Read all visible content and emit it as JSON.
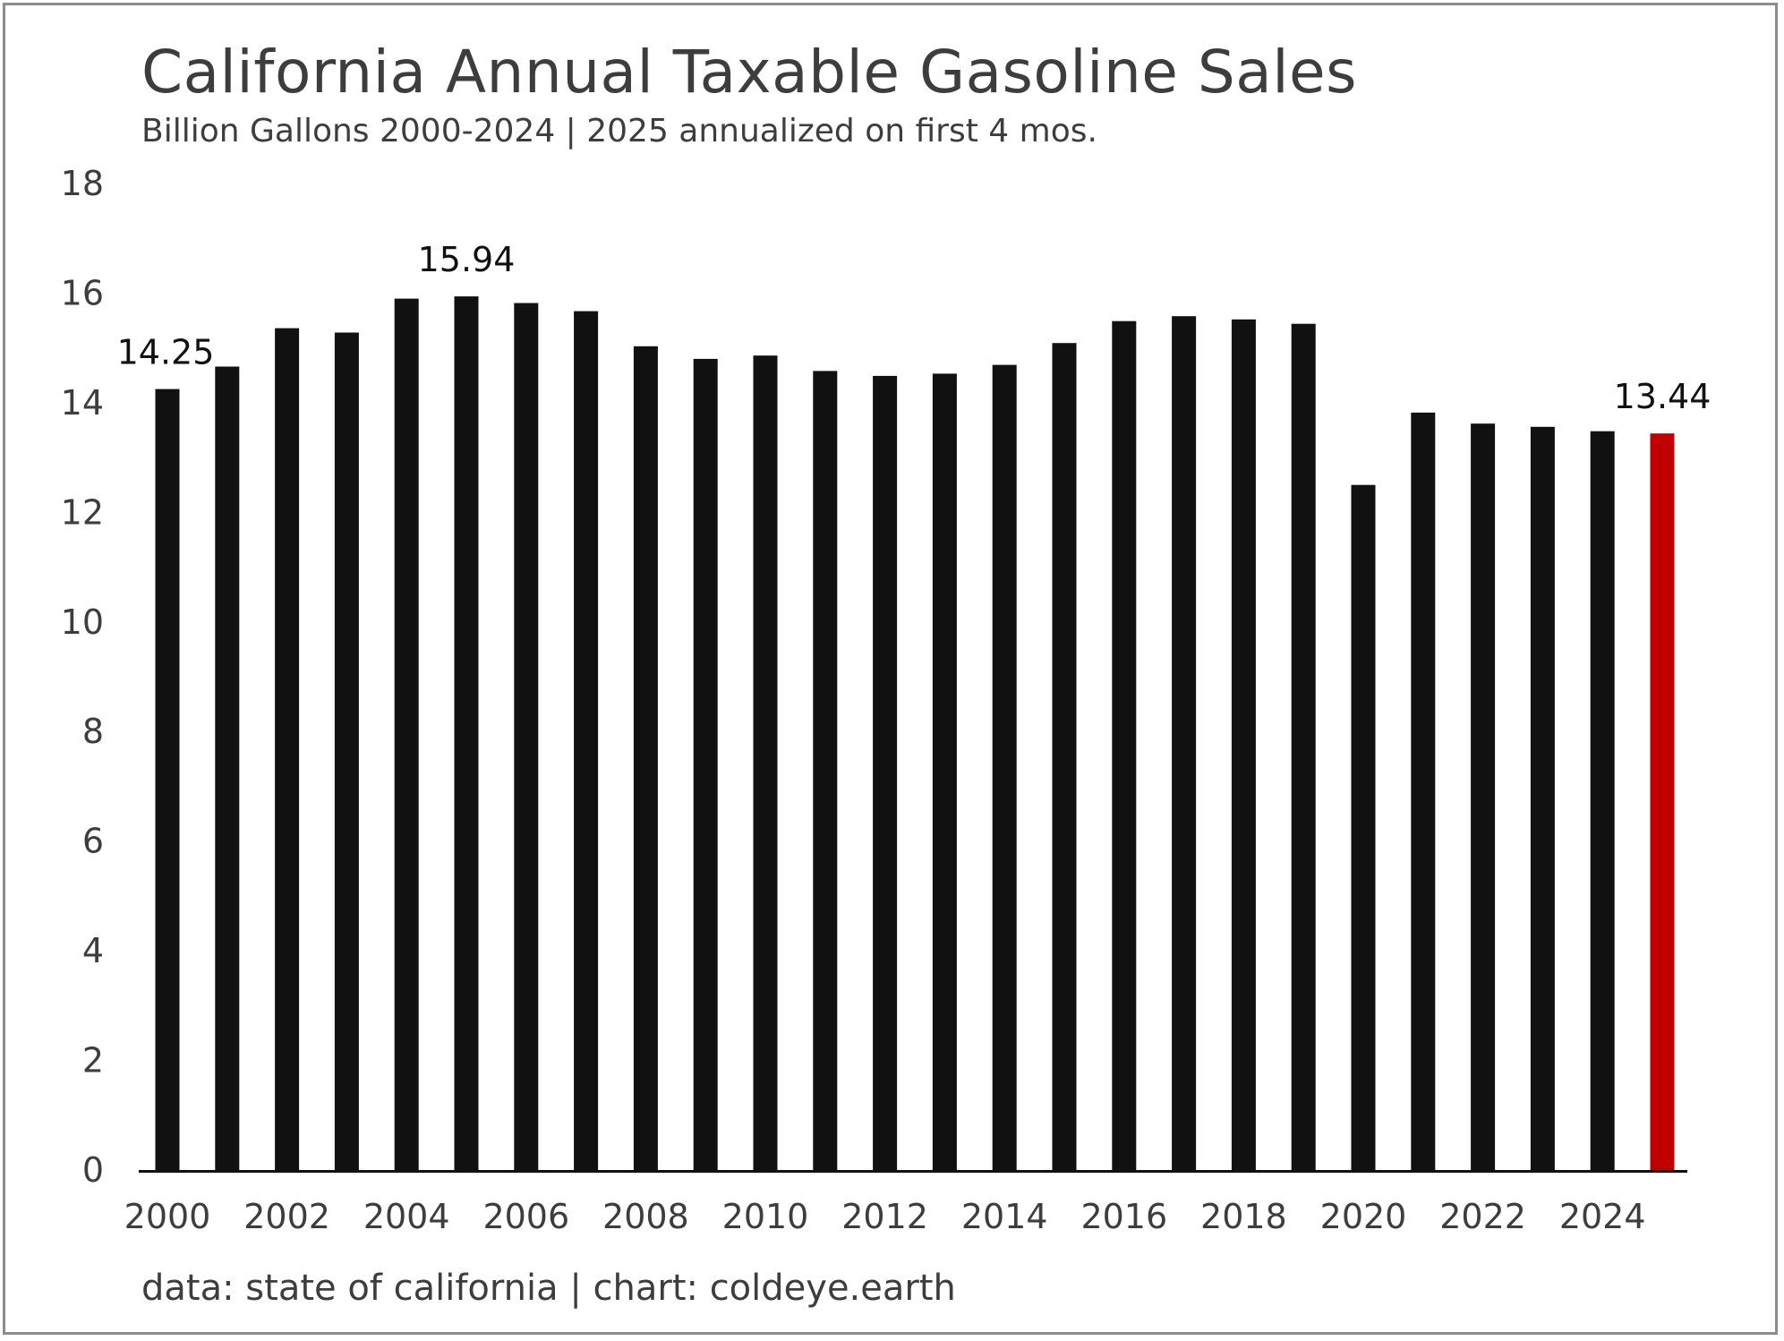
{
  "chart_data": {
    "type": "bar",
    "title": "California Annual Taxable Gasoline Sales",
    "subtitle": "Billion Gallons 2000-2024 | 2025 annualized on first 4 mos.",
    "source": "data: state of california | chart: coldeye.earth",
    "xlabel": "",
    "ylabel": "",
    "ylim": [
      0,
      18
    ],
    "y_ticks": [
      "0",
      "2",
      "4",
      "6",
      "8",
      "10",
      "12",
      "14",
      "16",
      "18"
    ],
    "x_tick_labels": [
      "2000",
      "2002",
      "2004",
      "2006",
      "2008",
      "2010",
      "2012",
      "2014",
      "2016",
      "2018",
      "2020",
      "2022",
      "2024"
    ],
    "categories": [
      "2000",
      "2001",
      "2002",
      "2003",
      "2004",
      "2005",
      "2006",
      "2007",
      "2008",
      "2009",
      "2010",
      "2011",
      "2012",
      "2013",
      "2014",
      "2015",
      "2016",
      "2017",
      "2018",
      "2019",
      "2020",
      "2021",
      "2022",
      "2023",
      "2024",
      "2025"
    ],
    "values": [
      14.25,
      14.66,
      15.36,
      15.28,
      15.9,
      15.94,
      15.82,
      15.67,
      15.03,
      14.8,
      14.86,
      14.58,
      14.49,
      14.53,
      14.69,
      15.09,
      15.49,
      15.58,
      15.52,
      15.44,
      12.5,
      13.82,
      13.62,
      13.56,
      13.48,
      13.44
    ],
    "data_labels": [
      {
        "category": "2000",
        "text": "14.25"
      },
      {
        "category": "2005",
        "text": "15.94"
      },
      {
        "category": "2025",
        "text": "13.44"
      }
    ],
    "grid": false,
    "colors": {
      "bar": "#111111",
      "highlight": "#c00000",
      "highlight_category": "2025",
      "axis": "#111111",
      "text": "#3d3d3d"
    }
  }
}
